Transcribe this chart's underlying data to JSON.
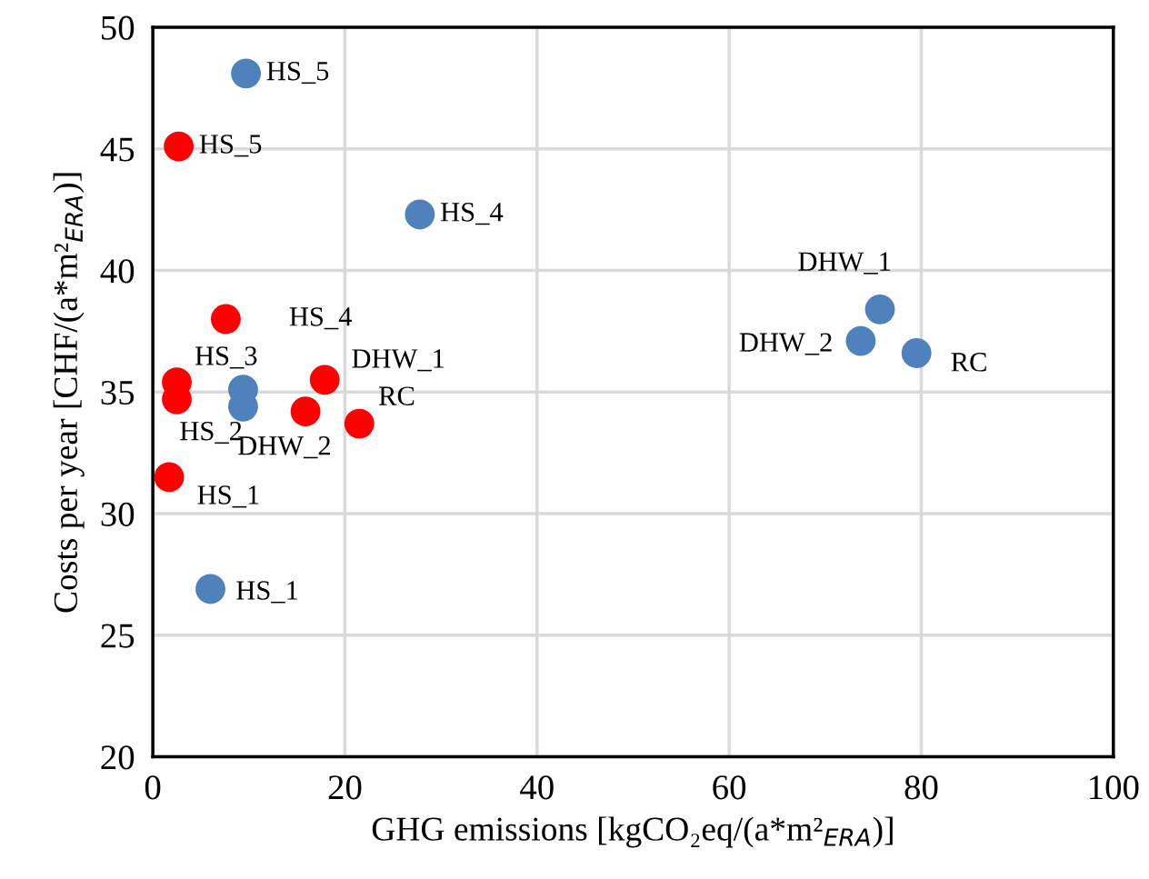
{
  "chart_data": {
    "type": "scatter",
    "xlabel": "GHG emissions [kgCO₂eq/(a*m²$_{ERA}$)]",
    "ylabel": "Costs per year [CHF/(a*m²$_{ERA}$)]",
    "xlim": [
      0,
      100
    ],
    "xticks": [
      0,
      20,
      40,
      60,
      80,
      100
    ],
    "ylim": [
      20,
      50
    ],
    "yticks": [
      20,
      25,
      30,
      35,
      40,
      45,
      50
    ],
    "grid": true,
    "marker": "circle",
    "series": [
      {
        "color": "#4f81bd",
        "x": [
          9.7,
          27.8,
          6.0,
          9.4,
          9.4,
          75.7,
          73.7,
          79.5
        ],
        "values": [
          48.1,
          42.3,
          26.9,
          35.1,
          34.4,
          38.4,
          37.1,
          36.6
        ]
      },
      {
        "color": "#ff0000",
        "x": [
          2.7,
          7.6,
          2.5,
          2.5,
          1.7,
          17.9,
          15.9,
          21.5
        ],
        "values": [
          45.1,
          38.0,
          35.4,
          34.7,
          31.5,
          35.5,
          34.2,
          33.7
        ]
      }
    ],
    "annotations": [
      {
        "text": "HS_5",
        "x": 9.7,
        "y": 48.1
      },
      {
        "text": "HS_5",
        "x": 2.7,
        "y": 45.1
      },
      {
        "text": "HS_4",
        "x": 27.8,
        "y": 42.3
      },
      {
        "text": "HS_4",
        "x": 7.6,
        "y": 38.0
      },
      {
        "text": "HS_3",
        "x": 2.5,
        "y": 35.4
      },
      {
        "text": "HS_2",
        "x": 2.5,
        "y": 34.7
      },
      {
        "text": "HS_1",
        "x": 1.7,
        "y": 31.5
      },
      {
        "text": "HS_1",
        "x": 6.0,
        "y": 26.9
      },
      {
        "text": "DHW_1",
        "x": 17.9,
        "y": 35.5
      },
      {
        "text": "DHW_2",
        "x": 15.9,
        "y": 34.2
      },
      {
        "text": "RC",
        "x": 21.5,
        "y": 33.7
      },
      {
        "text": "DHW_1",
        "x": 75.7,
        "y": 38.4
      },
      {
        "text": "DHW_2",
        "x": 73.7,
        "y": 37.1
      },
      {
        "text": "RC",
        "x": 79.5,
        "y": 36.6
      }
    ]
  }
}
